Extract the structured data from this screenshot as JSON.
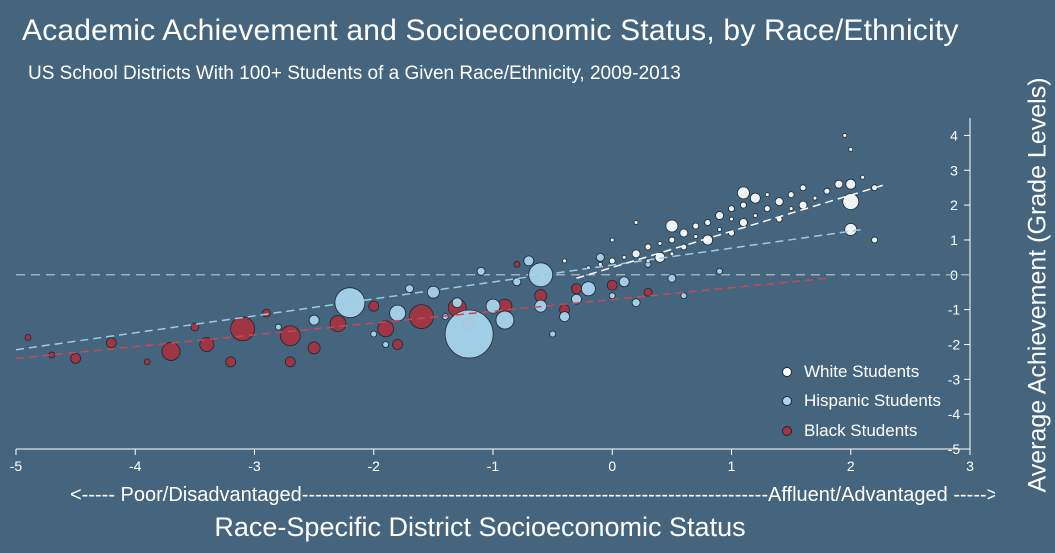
{
  "title": "Academic Achievement and Socioeconomic Status, by Race/Ethnicity",
  "subtitle": "US School Districts With 100+ Students of a Given Race/Ethnicity, 2009-2013",
  "x_axis_note_left": "<----- Poor/Disadvantaged",
  "x_axis_note_middle": "----------------------------------------------------------------------",
  "x_axis_note_right": "Affluent/Advantaged ----->",
  "colors": {
    "background": "#44657d",
    "white": "#ffffff",
    "hispanic": "#a9d6ef",
    "black": "#a8323e",
    "reference_line": "#9fb0bd"
  },
  "chart_data": {
    "type": "scatter",
    "title": "Academic Achievement and Socioeconomic Status, by Race/Ethnicity",
    "subtitle": "US School Districts With 100+ Students of a Given Race/Ethnicity, 2009-2013",
    "xlabel": "Race-Specific District Socioeconomic Status",
    "ylabel": "Average Achievement (Grade Levels)",
    "xlim": [
      -5,
      3
    ],
    "ylim": [
      -5,
      4.5
    ],
    "xticks": [
      "-5",
      "-4",
      "-3",
      "-2",
      "-1",
      "0",
      "1",
      "2",
      "3"
    ],
    "yticks": [
      "-5",
      "-4",
      "-3",
      "-2",
      "-1",
      "0",
      "1",
      "2",
      "3",
      "4"
    ],
    "grid": false,
    "legend_position": "bottom-right",
    "reference_line_y": 0,
    "series": [
      {
        "name": "White Students",
        "color": "#ffffff",
        "fit": {
          "x": [
            -0.3,
            2.3
          ],
          "y": [
            -0.1,
            2.6
          ]
        },
        "points": [
          [
            -0.1,
            0.3,
            2
          ],
          [
            0.0,
            0.4,
            3
          ],
          [
            0.1,
            0.5,
            2
          ],
          [
            0.2,
            0.6,
            4
          ],
          [
            0.3,
            0.4,
            2
          ],
          [
            0.3,
            0.8,
            3
          ],
          [
            0.4,
            0.9,
            2
          ],
          [
            0.4,
            0.5,
            5
          ],
          [
            0.5,
            1.0,
            3
          ],
          [
            0.5,
            0.6,
            2
          ],
          [
            0.6,
            1.2,
            4
          ],
          [
            0.6,
            0.8,
            3
          ],
          [
            0.7,
            1.1,
            2
          ],
          [
            0.7,
            1.4,
            3
          ],
          [
            0.8,
            1.0,
            5
          ],
          [
            0.8,
            1.5,
            3
          ],
          [
            0.9,
            1.3,
            2
          ],
          [
            0.9,
            1.7,
            4
          ],
          [
            1.0,
            1.2,
            3
          ],
          [
            1.0,
            1.6,
            2
          ],
          [
            1.0,
            1.9,
            3
          ],
          [
            1.1,
            1.5,
            4
          ],
          [
            1.1,
            2.0,
            3
          ],
          [
            1.2,
            1.7,
            2
          ],
          [
            1.2,
            2.2,
            5
          ],
          [
            1.3,
            1.9,
            3
          ],
          [
            1.3,
            2.3,
            2
          ],
          [
            1.4,
            2.1,
            4
          ],
          [
            1.4,
            1.6,
            3
          ],
          [
            1.5,
            2.3,
            3
          ],
          [
            1.5,
            1.9,
            2
          ],
          [
            1.6,
            2.0,
            4
          ],
          [
            1.6,
            2.5,
            3
          ],
          [
            1.7,
            2.2,
            2
          ],
          [
            1.8,
            2.4,
            3
          ],
          [
            1.9,
            2.6,
            4
          ],
          [
            2.0,
            2.1,
            8
          ],
          [
            2.0,
            2.6,
            5
          ],
          [
            2.0,
            1.3,
            6
          ],
          [
            2.1,
            2.8,
            2
          ],
          [
            2.2,
            2.5,
            3
          ],
          [
            2.2,
            1.0,
            3
          ],
          [
            1.95,
            4.0,
            2
          ],
          [
            2.0,
            3.6,
            2
          ],
          [
            0.2,
            1.5,
            2
          ],
          [
            -0.2,
            0.2,
            2
          ],
          [
            0.5,
            1.4,
            6
          ],
          [
            1.1,
            2.35,
            6
          ],
          [
            0.0,
            1.0,
            2
          ],
          [
            -0.4,
            0.4,
            2
          ]
        ]
      },
      {
        "name": "Hispanic Students",
        "color": "#a9d6ef",
        "fit": {
          "x": [
            -5,
            2.1
          ],
          "y": [
            -2.15,
            1.3
          ]
        },
        "points": [
          [
            -2.2,
            -0.8,
            15
          ],
          [
            -1.2,
            -1.7,
            24
          ],
          [
            -0.6,
            0.0,
            12
          ],
          [
            -1.8,
            -1.1,
            8
          ],
          [
            -1.5,
            -0.5,
            6
          ],
          [
            -1.0,
            -0.9,
            7
          ],
          [
            -0.9,
            -1.3,
            9
          ],
          [
            -0.6,
            -0.9,
            6
          ],
          [
            -0.3,
            -0.7,
            5
          ],
          [
            -0.2,
            -0.4,
            7
          ],
          [
            0.1,
            -0.2,
            5
          ],
          [
            0.2,
            -0.8,
            4
          ],
          [
            0.5,
            -0.1,
            4
          ],
          [
            -1.3,
            -0.8,
            5
          ],
          [
            -1.7,
            -0.4,
            4
          ],
          [
            -2.5,
            -1.3,
            5
          ],
          [
            -0.8,
            -0.2,
            4
          ],
          [
            -0.4,
            -1.2,
            5
          ],
          [
            0.0,
            -0.6,
            3
          ],
          [
            -1.1,
            0.1,
            4
          ],
          [
            -0.7,
            0.4,
            5
          ],
          [
            -1.4,
            -1.2,
            3
          ],
          [
            -2.0,
            -1.7,
            3
          ],
          [
            0.6,
            -0.6,
            3
          ],
          [
            0.9,
            0.1,
            3
          ],
          [
            -0.1,
            0.5,
            4
          ],
          [
            0.3,
            0.3,
            3
          ],
          [
            -1.9,
            -2.0,
            3
          ],
          [
            -0.5,
            -1.7,
            3
          ],
          [
            -2.8,
            -1.5,
            3
          ]
        ]
      },
      {
        "name": "Black Students",
        "color": "#a8323e",
        "fit": {
          "x": [
            -5,
            1.8
          ],
          "y": [
            -2.4,
            -0.1
          ]
        },
        "points": [
          [
            -3.1,
            -1.55,
            12
          ],
          [
            -2.7,
            -1.75,
            10
          ],
          [
            -1.6,
            -1.2,
            12
          ],
          [
            -1.3,
            -0.95,
            9
          ],
          [
            -3.7,
            -2.2,
            9
          ],
          [
            -1.9,
            -1.55,
            8
          ],
          [
            -2.3,
            -1.4,
            8
          ],
          [
            -3.4,
            -2.0,
            7
          ],
          [
            -0.9,
            -0.9,
            7
          ],
          [
            -0.6,
            -0.6,
            6
          ],
          [
            -0.3,
            -0.4,
            5
          ],
          [
            0.0,
            -0.3,
            5
          ],
          [
            -4.2,
            -1.95,
            5
          ],
          [
            -4.5,
            -2.4,
            5
          ],
          [
            -3.2,
            -2.5,
            5
          ],
          [
            -2.7,
            -2.5,
            5
          ],
          [
            -2.5,
            -2.1,
            6
          ],
          [
            -1.8,
            -2.0,
            5
          ],
          [
            -2.9,
            -1.1,
            4
          ],
          [
            -2.0,
            -0.9,
            5
          ],
          [
            -1.2,
            -1.4,
            6
          ],
          [
            -0.4,
            -1.0,
            5
          ],
          [
            0.3,
            -0.5,
            4
          ],
          [
            0.5,
            -0.1,
            3
          ],
          [
            -3.9,
            -2.5,
            3
          ],
          [
            -4.7,
            -2.3,
            3
          ],
          [
            -4.9,
            -1.8,
            3
          ],
          [
            -3.5,
            -1.5,
            4
          ],
          [
            -1.5,
            -0.5,
            4
          ],
          [
            -0.8,
            0.3,
            3
          ]
        ]
      }
    ]
  }
}
